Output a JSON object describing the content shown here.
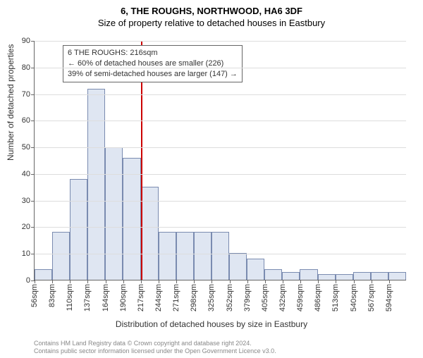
{
  "title1": "6, THE ROUGHS, NORTHWOOD, HA6 3DF",
  "title2": "Size of property relative to detached houses in Eastbury",
  "ylabel": "Number of detached properties",
  "xlabel": "Distribution of detached houses by size in Eastbury",
  "footer1": "Contains HM Land Registry data © Crown copyright and database right 2024.",
  "footer2": "Contains public sector information licensed under the Open Government Licence v3.0.",
  "chart": {
    "type": "histogram",
    "ylim_max": 90,
    "ytick_step": 10,
    "background_color": "#ffffff",
    "grid_color": "#dddddd",
    "axis_color": "#666666",
    "bar_fill": "#dfe6f2",
    "bar_border": "#7a8bb0",
    "vline_color": "#cc0000",
    "vline_after_bar_index": 6,
    "annot": {
      "line1": "6 THE ROUGHS: 216sqm",
      "line2": "← 60% of detached houses are smaller (226)",
      "line3": "39% of semi-detached houses are larger (147) →"
    },
    "xticks": [
      "56sqm",
      "83sqm",
      "110sqm",
      "137sqm",
      "164sqm",
      "190sqm",
      "217sqm",
      "244sqm",
      "271sqm",
      "298sqm",
      "325sqm",
      "352sqm",
      "379sqm",
      "405sqm",
      "432sqm",
      "459sqm",
      "486sqm",
      "513sqm",
      "540sqm",
      "567sqm",
      "594sqm"
    ],
    "values": [
      4,
      18,
      38,
      72,
      50,
      46,
      35,
      18,
      18,
      18,
      18,
      10,
      8,
      4,
      3,
      4,
      2,
      2,
      3,
      3,
      3
    ]
  }
}
